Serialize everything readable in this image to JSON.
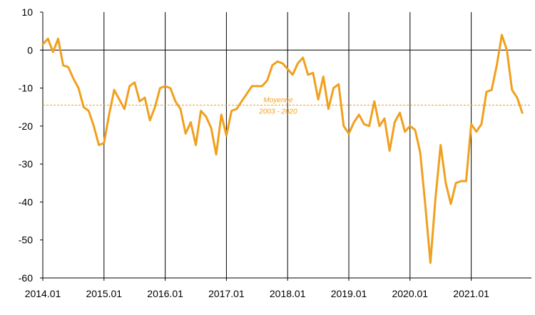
{
  "chart_data": {
    "type": "line",
    "title": "",
    "xlabel": "",
    "ylabel": "",
    "ylim": [
      -60,
      10
    ],
    "y_ticks": [
      10,
      0,
      -10,
      -20,
      -30,
      -40,
      -50,
      -60
    ],
    "x_ticks": [
      "2014.01",
      "2015.01",
      "2016.01",
      "2017.01",
      "2018.01",
      "2019.01",
      "2020.01",
      "2021.01"
    ],
    "grid": "vertical lines at each year",
    "colors": {
      "series": "#f0a01e",
      "average": "#f0a01e",
      "axis": "#000000"
    },
    "series": [
      {
        "start": "2014.01",
        "frequency": "monthly",
        "values": [
          1.5,
          3,
          -0.5,
          3,
          -4,
          -4.5,
          -7.5,
          -10,
          -15,
          -16,
          -20,
          -25,
          -24.5,
          -17,
          -10.5,
          -13,
          -15.5,
          -9.5,
          -8.5,
          -13.5,
          -12.5,
          -18.5,
          -15,
          -10,
          -9.5,
          -10,
          -13.5,
          -15.5,
          -22,
          -19,
          -25,
          -16,
          -17.5,
          -20.5,
          -27.5,
          -17,
          -22.5,
          -16,
          -15.5,
          -13.5,
          -11.5,
          -9.5,
          -9.5,
          -9.5,
          -8,
          -4,
          -3,
          -3.5,
          -5,
          -6.5,
          -3.5,
          -2,
          -6.5,
          -6,
          -13,
          -7,
          -15.5,
          -10,
          -9,
          -20,
          -22,
          -19,
          -17,
          -19.5,
          -20,
          -13.5,
          -20,
          -18,
          -26.5,
          -19,
          -16.5,
          -21.5,
          -20,
          -21,
          -27,
          -41,
          -56,
          -39,
          -25,
          -35,
          -40.5,
          -35,
          -34.5,
          -34.5,
          -19.5,
          -21.5,
          -19.5,
          -11,
          -10.5,
          -4,
          4,
          0,
          -10.5,
          -12.5,
          -16.5
        ]
      }
    ],
    "reference_line": {
      "value": -14.5,
      "label_line1": "Moyenne",
      "label_line2": "2003 - 2020"
    }
  }
}
